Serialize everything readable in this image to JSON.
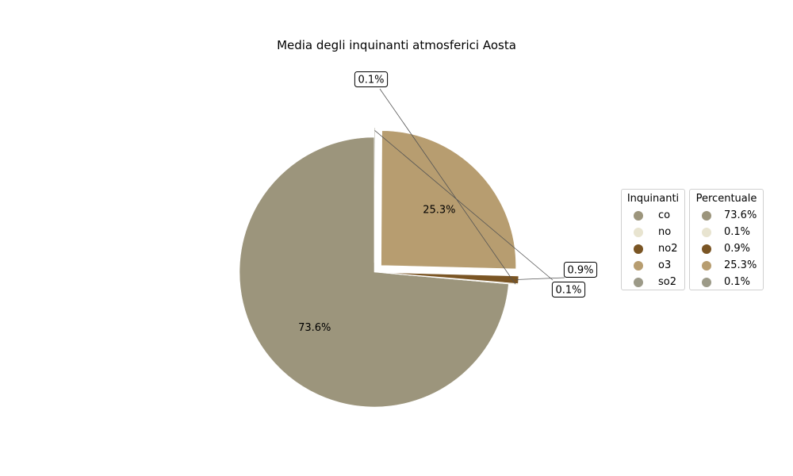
{
  "chart_data": {
    "type": "pie",
    "title": "Media degli inquinanti atmosferici Aosta",
    "categories": [
      "co",
      "no",
      "no2",
      "o3",
      "so2"
    ],
    "values": [
      73.6,
      0.1,
      0.9,
      25.3,
      0.1
    ],
    "value_labels": [
      "73.6%",
      "0.1%",
      "0.9%",
      "25.3%",
      "0.1%"
    ],
    "colors": [
      "#9c957c",
      "#e8e4d0",
      "#7a5524",
      "#b79d70",
      "#9c9a88"
    ],
    "exploded": [
      false,
      true,
      true,
      true,
      true
    ],
    "legends": [
      {
        "title": "Inquinanti",
        "entries": [
          "co",
          "no",
          "no2",
          "o3",
          "so2"
        ]
      },
      {
        "title": "Percentuale",
        "entries": [
          "73.6%",
          "0.1%",
          "0.9%",
          "25.3%",
          "0.1%"
        ]
      }
    ],
    "legend_placement": "right"
  }
}
